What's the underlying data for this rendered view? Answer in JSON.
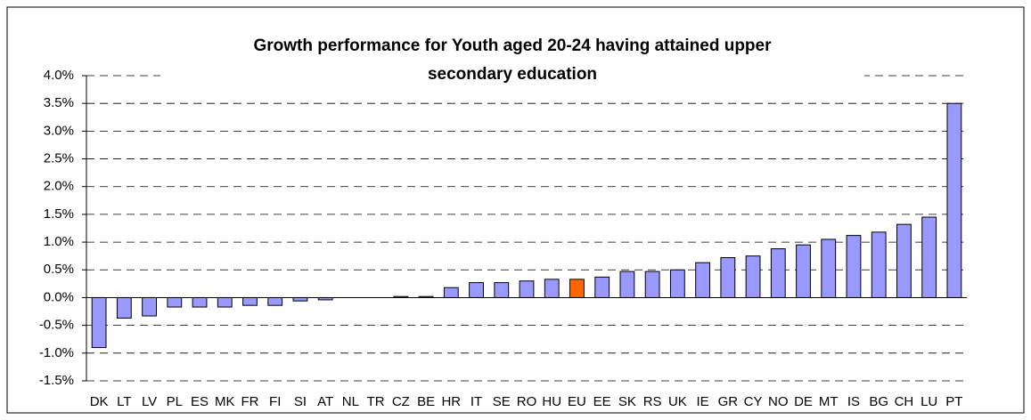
{
  "chart_data": {
    "type": "bar",
    "title": [
      "Growth performance for Youth aged 20-24 having attained upper",
      "secondary education"
    ],
    "categories": [
      "DK",
      "LT",
      "LV",
      "PL",
      "ES",
      "MK",
      "FR",
      "FI",
      "SI",
      "AT",
      "NL",
      "TR",
      "CZ",
      "BE",
      "HR",
      "IT",
      "SE",
      "RO",
      "HU",
      "EU",
      "EE",
      "SK",
      "RS",
      "UK",
      "IE",
      "GR",
      "CY",
      "NO",
      "DE",
      "MT",
      "IS",
      "BG",
      "CH",
      "LU",
      "PT"
    ],
    "values": [
      -0.9,
      -0.37,
      -0.33,
      -0.17,
      -0.17,
      -0.17,
      -0.14,
      -0.14,
      -0.06,
      -0.04,
      0,
      0,
      0.02,
      0.02,
      0.18,
      0.27,
      0.27,
      0.3,
      0.33,
      0.33,
      0.37,
      0.47,
      0.47,
      0.5,
      0.63,
      0.72,
      0.75,
      0.88,
      0.95,
      1.05,
      1.12,
      1.18,
      1.32,
      1.45,
      3.5
    ],
    "colors": [
      "#9999ff",
      "#9999ff",
      "#9999ff",
      "#9999ff",
      "#9999ff",
      "#9999ff",
      "#9999ff",
      "#9999ff",
      "#9999ff",
      "#9999ff",
      "#9999ff",
      "#9999ff",
      "#9999ff",
      "#9999ff",
      "#9999ff",
      "#9999ff",
      "#9999ff",
      "#9999ff",
      "#9999ff",
      "#ff6600",
      "#9999ff",
      "#9999ff",
      "#9999ff",
      "#9999ff",
      "#9999ff",
      "#9999ff",
      "#9999ff",
      "#9999ff",
      "#9999ff",
      "#9999ff",
      "#9999ff",
      "#9999ff",
      "#9999ff",
      "#9999ff",
      "#9999ff"
    ],
    "ylim": [
      -1.5,
      4.0
    ],
    "yticks": [
      {
        "value": -1.5,
        "label": "-1.5%"
      },
      {
        "value": -1.0,
        "label": "-1.0%"
      },
      {
        "value": -0.5,
        "label": "-0.5%"
      },
      {
        "value": 0,
        "label": "0.0%"
      },
      {
        "value": 0.5,
        "label": "0.5%"
      },
      {
        "value": 1.0,
        "label": "1.0%"
      },
      {
        "value": 1.5,
        "label": "1.5%"
      },
      {
        "value": 2.0,
        "label": "2.0%"
      },
      {
        "value": 2.5,
        "label": "2.5%"
      },
      {
        "value": 3.0,
        "label": "3.0%"
      },
      {
        "value": 3.5,
        "label": "3.5%"
      },
      {
        "value": 4.0,
        "label": "4.0%"
      }
    ],
    "grid": true
  }
}
